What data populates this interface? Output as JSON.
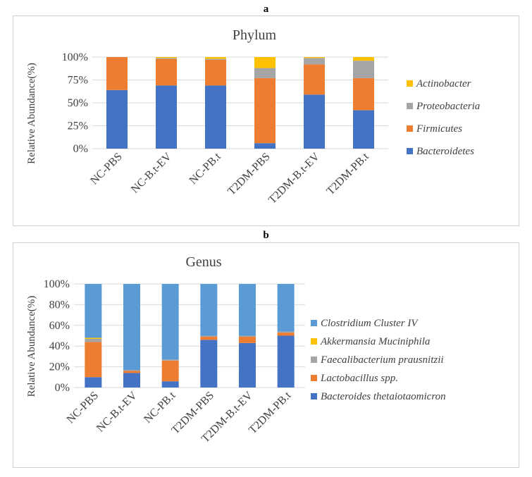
{
  "panels": {
    "a": {
      "letter": "a"
    },
    "b": {
      "letter": "b"
    }
  },
  "chart_data": [
    {
      "type": "bar",
      "stacked": true,
      "percent": true,
      "title": "Phylum",
      "ylabel": "Relative Abundance(%)",
      "xlabel": "",
      "ylim": [
        0,
        100
      ],
      "yticks": [
        "0%",
        "25%",
        "50%",
        "75%",
        "100%"
      ],
      "ytick_values": [
        0,
        25,
        50,
        75,
        100
      ],
      "categories": [
        "NC-PBS",
        "NC-B.t-EV",
        "NC-PB.t",
        "T2DM-PBS",
        "T2DM-B.t-EV",
        "T2DM-PB.t"
      ],
      "legend_position": "right",
      "grid": true,
      "series": [
        {
          "name": "Bacteroidetes",
          "color": "#4472c4",
          "values": [
            64,
            69,
            69,
            6,
            59,
            42
          ]
        },
        {
          "name": "Firmicutes",
          "color": "#ed7d31",
          "values": [
            36,
            29,
            28,
            71,
            33,
            35
          ]
        },
        {
          "name": "Proteobacteria",
          "color": "#a5a5a5",
          "values": [
            0,
            1,
            1,
            11,
            7,
            19
          ]
        },
        {
          "name": "Actinobacter",
          "color": "#ffc000",
          "values": [
            0,
            1,
            2,
            12,
            1,
            4
          ]
        }
      ]
    },
    {
      "type": "bar",
      "stacked": true,
      "percent": true,
      "title": "Genus",
      "ylabel": "Relative Abundance(%)",
      "xlabel": "",
      "ylim": [
        0,
        100
      ],
      "yticks": [
        "0%",
        "20%",
        "40%",
        "60%",
        "80%",
        "100%"
      ],
      "ytick_values": [
        0,
        20,
        40,
        60,
        80,
        100
      ],
      "categories": [
        "NC-PBS",
        "NC-B.t-EV",
        "NC-PB.t",
        "T2DM-PBS",
        "T2DM-B.t-EV",
        "T2DM-PB.t"
      ],
      "legend_position": "right",
      "grid": true,
      "series": [
        {
          "name": "Bacteroides thetaiotaomicron",
          "color": "#4472c4",
          "values": [
            10,
            14,
            6,
            46,
            43,
            50
          ]
        },
        {
          "name": "Lactobacillus spp.",
          "color": "#ed7d31",
          "values": [
            34,
            2,
            20,
            3,
            6,
            3
          ]
        },
        {
          "name": "Faecalibacterium prausnitzii",
          "color": "#a5a5a5",
          "values": [
            3,
            1,
            1,
            1,
            1,
            1
          ]
        },
        {
          "name": "Akkermansia Muciniphila",
          "color": "#ffc000",
          "values": [
            1,
            0,
            0,
            0,
            0,
            0
          ]
        },
        {
          "name": "Clostridium Cluster IV",
          "color": "#5b9bd5",
          "values": [
            52,
            83,
            73,
            50,
            50,
            46
          ]
        }
      ]
    }
  ]
}
